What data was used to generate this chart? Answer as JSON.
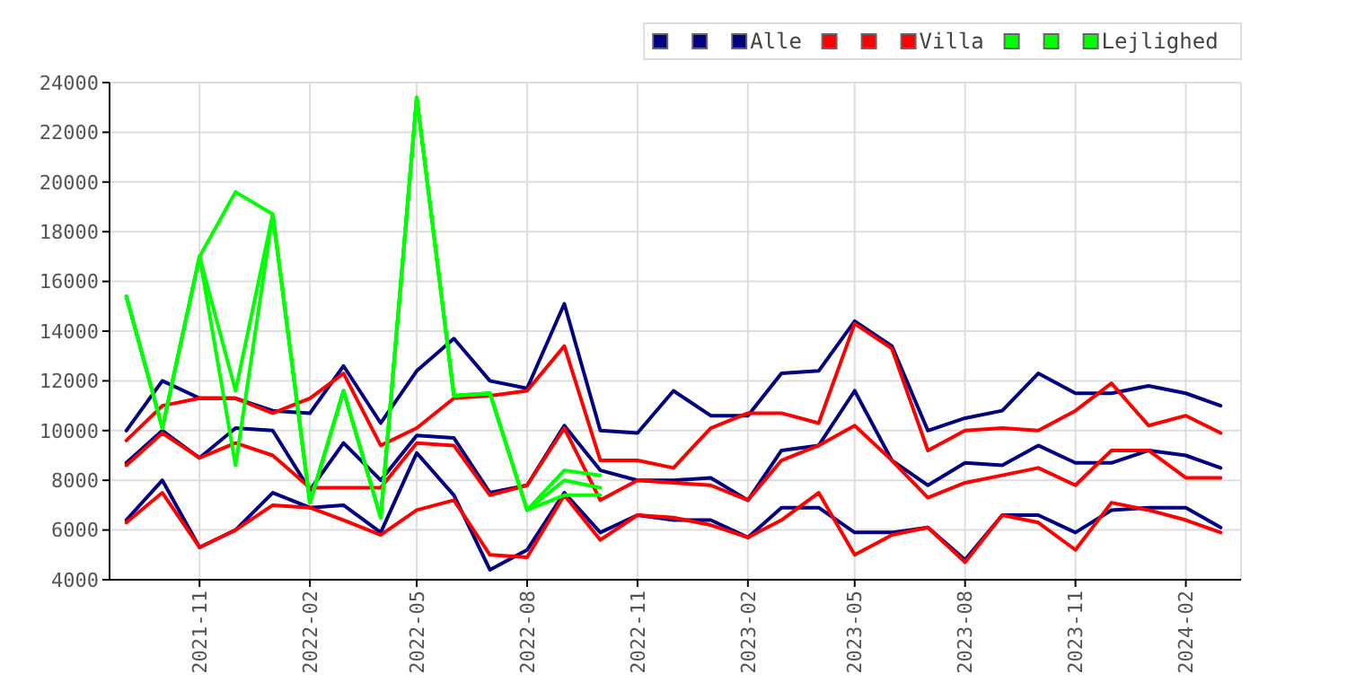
{
  "chart_data": {
    "type": "line",
    "x": [
      "2021-09",
      "2021-10",
      "2021-11",
      "2021-12",
      "2022-01",
      "2022-02",
      "2022-03",
      "2022-04",
      "2022-05",
      "2022-06",
      "2022-07",
      "2022-08",
      "2022-09",
      "2022-10",
      "2022-11",
      "2022-12",
      "2023-01",
      "2023-02",
      "2023-03",
      "2023-04",
      "2023-05",
      "2023-06",
      "2023-07",
      "2023-08",
      "2023-09",
      "2023-10",
      "2023-11",
      "2023-12",
      "2024-01",
      "2024-02",
      "2024-03"
    ],
    "series": [
      {
        "color": "#000080",
        "values": [
          10000,
          12000,
          11300,
          11300,
          10800,
          10700,
          12600,
          10300,
          12400,
          13700,
          12000,
          11700,
          15100,
          10000,
          9900,
          11600,
          10600,
          10600,
          12300,
          12400,
          14400,
          13400,
          10000,
          10500,
          10800,
          12300,
          11500,
          11500,
          11800,
          11500,
          11000
        ]
      },
      {
        "color": "#000080",
        "values": [
          8700,
          10000,
          8900,
          10100,
          10000,
          7600,
          9500,
          8000,
          9800,
          9700,
          7500,
          7800,
          10200,
          8400,
          8000,
          8000,
          8100,
          7200,
          9200,
          9400,
          11600,
          8800,
          7800,
          8700,
          8600,
          9400,
          8700,
          8700,
          9200,
          9000,
          8500
        ]
      },
      {
        "name": "Alle",
        "color": "#000080",
        "values": [
          6400,
          8000,
          5300,
          6000,
          7500,
          6900,
          7000,
          5900,
          9100,
          7400,
          4400,
          5200,
          7500,
          5900,
          6600,
          6400,
          6400,
          5700,
          6900,
          6900,
          5900,
          5900,
          6100,
          4800,
          6600,
          6600,
          5900,
          6800,
          6900,
          6900,
          6100
        ]
      },
      {
        "color": "#ff0000",
        "values": [
          9600,
          11000,
          11300,
          11300,
          10700,
          11300,
          12300,
          9400,
          10100,
          11300,
          11400,
          11600,
          13400,
          8800,
          8800,
          8500,
          10100,
          10700,
          10700,
          10300,
          14300,
          13300,
          9200,
          10000,
          10100,
          10000,
          10800,
          11900,
          10200,
          10600,
          9900
        ]
      },
      {
        "color": "#ff0000",
        "values": [
          8600,
          9900,
          8900,
          9500,
          9000,
          7700,
          7700,
          7700,
          9500,
          9400,
          7400,
          7800,
          10100,
          7200,
          8000,
          7900,
          7800,
          7200,
          8800,
          9400,
          10200,
          8800,
          7300,
          7900,
          8200,
          8500,
          7800,
          9200,
          9200,
          8100,
          8100
        ]
      },
      {
        "name": "Villa",
        "color": "#ff0000",
        "values": [
          6300,
          7500,
          5300,
          6000,
          7000,
          6900,
          6400,
          5800,
          6800,
          7200,
          5000,
          4900,
          7400,
          5600,
          6600,
          6500,
          6200,
          5700,
          6400,
          7500,
          5000,
          5800,
          6100,
          4700,
          6600,
          6300,
          5200,
          7100,
          6800,
          6400,
          5900
        ]
      },
      {
        "color": "#00ff00",
        "values": [
          15400,
          10100,
          17000,
          19600,
          18700,
          7100,
          11600,
          6500,
          23400,
          11400,
          11500,
          6800,
          8400,
          8200,
          null,
          null,
          null,
          null,
          null,
          null,
          null,
          null,
          null,
          null,
          null,
          null,
          null,
          null,
          null,
          null,
          null
        ]
      },
      {
        "color": "#00ff00",
        "values": [
          15400,
          10100,
          17000,
          11600,
          18700,
          7100,
          11600,
          6500,
          23400,
          11400,
          11500,
          6800,
          8000,
          7700,
          null,
          null,
          null,
          null,
          null,
          null,
          null,
          null,
          null,
          null,
          null,
          null,
          null,
          null,
          null,
          null,
          null
        ]
      },
      {
        "name": "Lejlighed",
        "color": "#00ff00",
        "values": [
          15400,
          10100,
          17000,
          8600,
          18700,
          7100,
          11600,
          6500,
          23400,
          11400,
          11500,
          6800,
          7400,
          7400,
          null,
          null,
          null,
          null,
          null,
          null,
          null,
          null,
          null,
          null,
          null,
          null,
          null,
          null,
          null,
          null,
          null
        ]
      }
    ],
    "xlim": [
      "2021-08-18",
      "2024-03-18"
    ],
    "xticks": [
      "2021-11",
      "2022-02",
      "2022-05",
      "2022-08",
      "2022-11",
      "2023-02",
      "2023-05",
      "2023-08",
      "2023-11",
      "2024-02"
    ],
    "ylim": [
      4000,
      24000
    ],
    "yticks": [
      4000,
      6000,
      8000,
      10000,
      12000,
      14000,
      16000,
      18000,
      20000,
      22000,
      24000
    ],
    "grid": true,
    "legend": "top right",
    "marker": "none",
    "line_style": "solid"
  }
}
